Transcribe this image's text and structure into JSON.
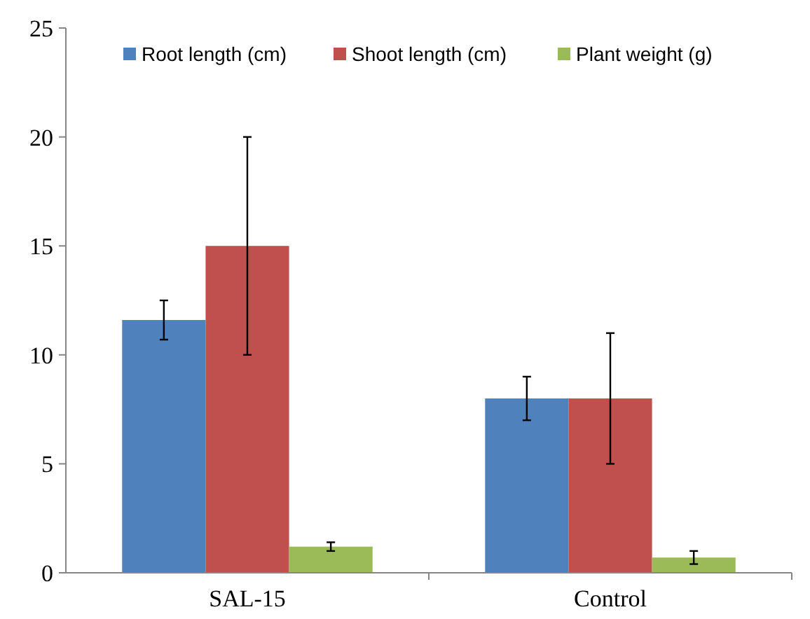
{
  "chart_data": {
    "type": "bar",
    "categories": [
      "SAL-15",
      "Control"
    ],
    "series": [
      {
        "name": "Root length (cm)",
        "color": "#4f81bd",
        "values": [
          11.6,
          8
        ],
        "errors": [
          0.9,
          1
        ]
      },
      {
        "name": "Shoot length (cm)",
        "color": "#c0504d",
        "values": [
          15,
          8
        ],
        "errors": [
          5,
          3
        ]
      },
      {
        "name": "Plant weight (g)",
        "color": "#9bbb59",
        "values": [
          1.2,
          0.7
        ],
        "errors": [
          0.2,
          0.3
        ]
      }
    ],
    "ylim": [
      0,
      25
    ],
    "yticks": [
      0,
      5,
      10,
      15,
      20,
      25
    ],
    "grid": false,
    "legend": "top"
  }
}
